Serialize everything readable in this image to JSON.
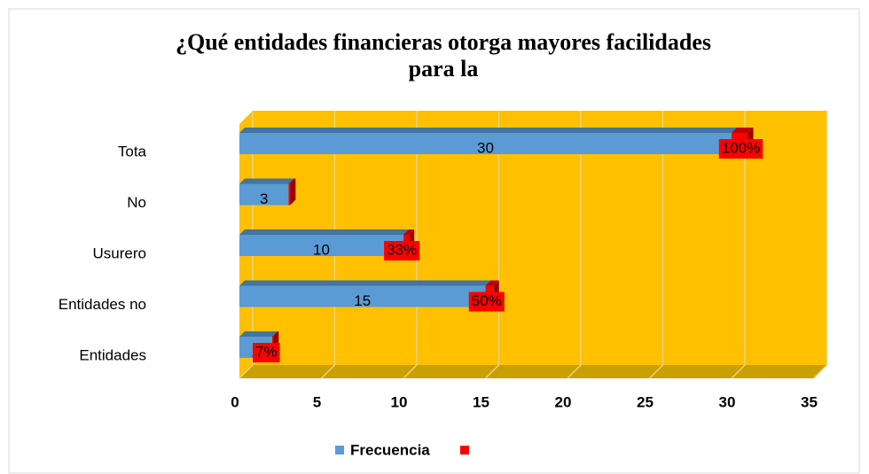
{
  "chart_data": {
    "type": "bar3d_horizontal_stacked",
    "title": [
      "¿Qué entidades financieras otorga mayores facilidades",
      "para la"
    ],
    "categories": [
      "Entidades",
      "Entidades no",
      "Usurero",
      "No",
      "Tota"
    ],
    "series": [
      {
        "name": "Frecuencia",
        "color": "#5b9bd5",
        "values": [
          2,
          15,
          10,
          3,
          30
        ]
      },
      {
        "color": "#ff0000",
        "values": [
          0.07,
          0.5,
          0.33,
          0.1,
          1
        ],
        "value_labels": [
          "7%",
          "50%",
          "33%",
          null,
          "100%"
        ]
      }
    ],
    "xlim": [
      0,
      35
    ],
    "xticks": [
      0,
      5,
      10,
      15,
      20,
      25,
      30,
      35
    ],
    "grid": true,
    "wall_color": "#ffc000",
    "floor_color": "#c9a000",
    "legend": "bottom"
  }
}
